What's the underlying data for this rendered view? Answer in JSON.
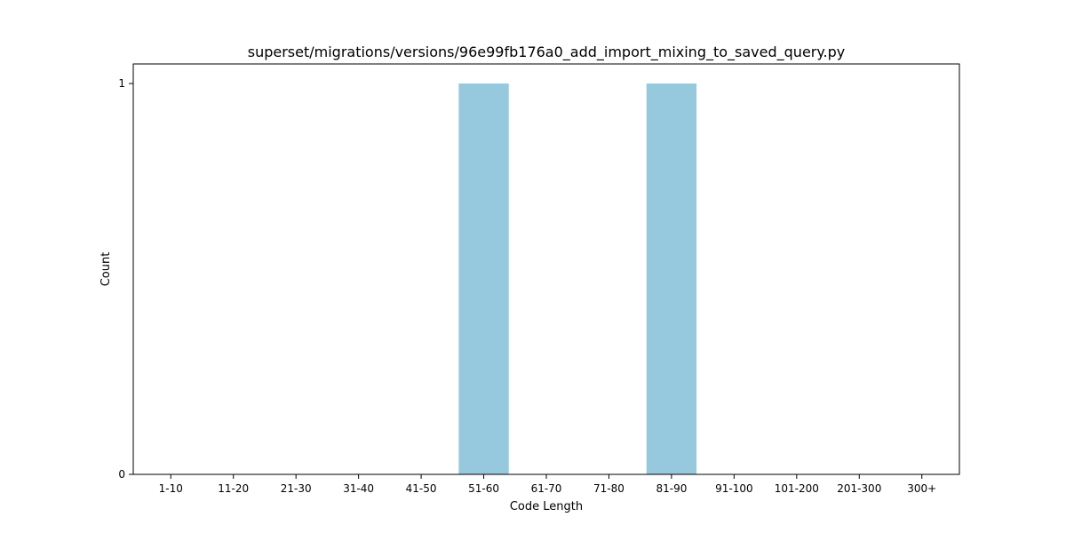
{
  "chart_data": {
    "type": "bar",
    "title": "superset/migrations/versions/96e99fb176a0_add_import_mixing_to_saved_query.py",
    "xlabel": "Code Length",
    "ylabel": "Count",
    "categories": [
      "1-10",
      "11-20",
      "21-30",
      "31-40",
      "41-50",
      "51-60",
      "61-70",
      "71-80",
      "81-90",
      "91-100",
      "101-200",
      "201-300",
      "300+"
    ],
    "values": [
      0,
      0,
      0,
      0,
      0,
      1,
      0,
      0,
      1,
      0,
      0,
      0,
      0
    ],
    "ylim": [
      0,
      1.05
    ],
    "yticks": [
      0,
      1
    ],
    "grid": false,
    "bar_color": "#96c9dd"
  }
}
